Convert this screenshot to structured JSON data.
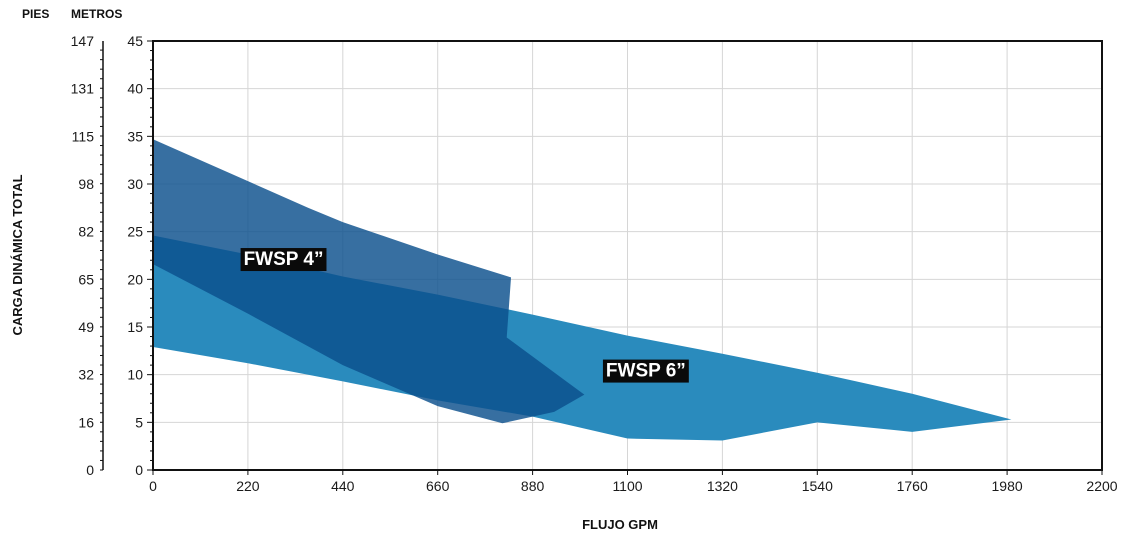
{
  "chart_data": {
    "type": "area",
    "title": "",
    "xlabel": "FLUJO GPM",
    "ylabel": "CARGA DINÁMICA TOTAL",
    "unit_labels": {
      "pies": "PIES",
      "metros": "METROS"
    },
    "x_ticks": [
      0,
      220,
      440,
      660,
      880,
      1100,
      1320,
      1540,
      1760,
      1980,
      2200
    ],
    "xlim": [
      0,
      2200
    ],
    "y_ticks_metros": [
      0,
      5,
      10,
      15,
      20,
      25,
      30,
      35,
      40,
      45
    ],
    "y_ticks_pies": [
      0,
      16,
      32,
      49,
      65,
      82,
      98,
      115,
      131,
      147
    ],
    "ylim": [
      0,
      45
    ],
    "grid": true,
    "series": [
      {
        "name": "FWSP 6”",
        "color": "#2a8bbd",
        "polygon": [
          [
            0,
            21.6
          ],
          [
            220,
            18.2
          ],
          [
            440,
            14.5
          ],
          [
            660,
            11
          ],
          [
            880,
            8
          ],
          [
            1000,
            7.8
          ],
          [
            1000,
            8
          ],
          [
            880,
            5.5
          ],
          [
            660,
            7.2
          ],
          [
            440,
            9.5
          ],
          [
            220,
            11.2
          ],
          [
            0,
            12.9
          ]
        ],
        "polygon_6": [
          [
            0,
            24.6
          ],
          [
            220,
            22.6
          ],
          [
            440,
            20.3
          ],
          [
            660,
            18.4
          ],
          [
            880,
            16.3
          ],
          [
            1100,
            14.1
          ],
          [
            1320,
            12.2
          ],
          [
            1540,
            10.2
          ],
          [
            1760,
            8
          ],
          [
            1990,
            5.3
          ],
          [
            1760,
            4
          ],
          [
            1540,
            5
          ],
          [
            1320,
            3.1
          ],
          [
            1100,
            3.3
          ],
          [
            880,
            5.6
          ],
          [
            660,
            7.3
          ],
          [
            440,
            9.3
          ],
          [
            220,
            11.2
          ],
          [
            0,
            12.9
          ]
        ]
      },
      {
        "name": "FWSP 4”",
        "color": "#0b4f8c",
        "polygon": [
          [
            0,
            34.7
          ],
          [
            220,
            30.3
          ],
          [
            360,
            27.5
          ],
          [
            440,
            26
          ],
          [
            660,
            22.6
          ],
          [
            830,
            20.2
          ],
          [
            820,
            13.9
          ],
          [
            1000,
            7.9
          ],
          [
            930,
            6.1
          ],
          [
            810,
            4.9
          ],
          [
            660,
            6.7
          ],
          [
            440,
            11
          ],
          [
            220,
            16.4
          ],
          [
            0,
            21.6
          ]
        ]
      }
    ],
    "labels": [
      {
        "text": "FWSP 4”",
        "x": 210,
        "y": 21.5
      },
      {
        "text": "FWSP 6”",
        "x": 1050,
        "y": 9.8
      }
    ]
  }
}
